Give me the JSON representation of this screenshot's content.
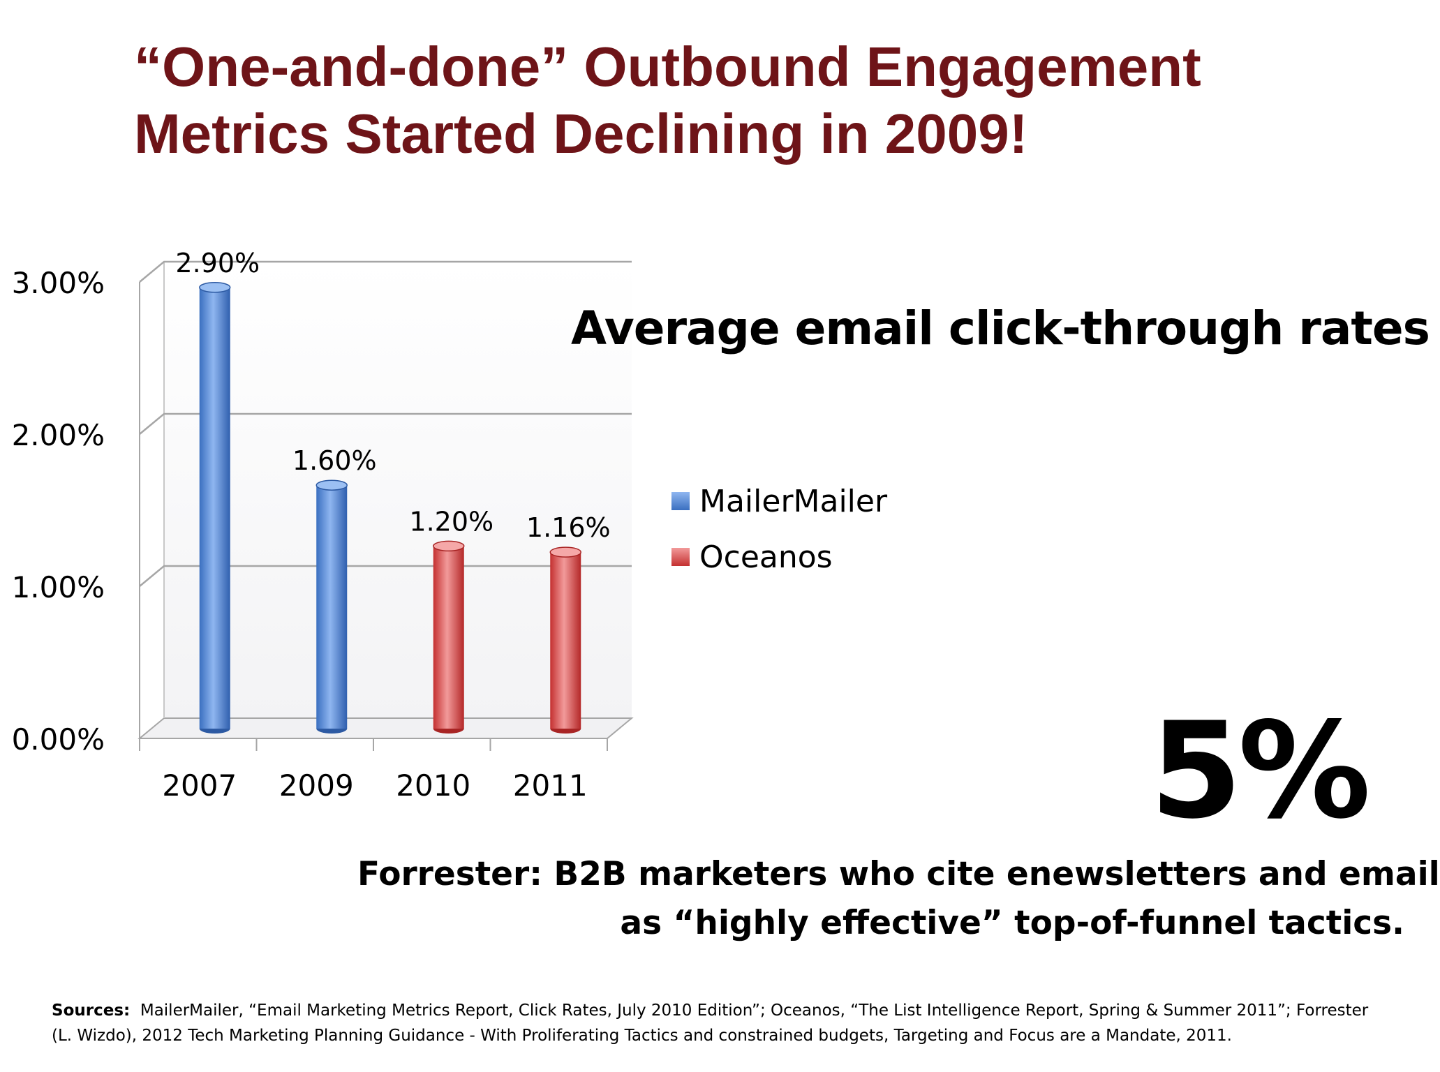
{
  "slide": {
    "title_line1": "“One-and-done” Outbound Engagement",
    "title_line2": "Metrics Started Declining in 2009!",
    "title_color": "#6e1418",
    "big_stat": "5%",
    "stat_caption_line1": "Forrester: B2B marketers who cite enewsletters and email",
    "stat_caption_line2": "as “highly effective” top-of-funnel tactics.",
    "sources_label": "Sources:",
    "sources_line1": "MailerMailer, “Email Marketing Metrics Report, Click Rates, July 2010 Edition”; Oceanos, “The List Intelligence Report, Spring & Summer 2011”; Forrester",
    "sources_line2": "(L. Wizdo), 2012 Tech Marketing Planning Guidance - With Proliferating Tactics and constrained budgets, Targeting and Focus are a Mandate, 2011."
  },
  "chart_data": {
    "type": "bar",
    "title": "Average email click-through rates",
    "categories": [
      "2007",
      "2009",
      "2010",
      "2011"
    ],
    "series": [
      {
        "name": "MailerMailer",
        "values": [
          2.9,
          1.6,
          null,
          null
        ],
        "color": "#4f81bd"
      },
      {
        "name": "Oceanos",
        "values": [
          null,
          null,
          1.2,
          1.16
        ],
        "color": "#e05555"
      }
    ],
    "data_labels": [
      "2.90%",
      "1.60%",
      "1.20%",
      "1.16%"
    ],
    "y_ticks": [
      "0.00%",
      "1.00%",
      "2.00%",
      "3.00%"
    ],
    "ylim": [
      0,
      3
    ],
    "grid": true,
    "legend_position": "right",
    "style": "3d-cylinder"
  }
}
